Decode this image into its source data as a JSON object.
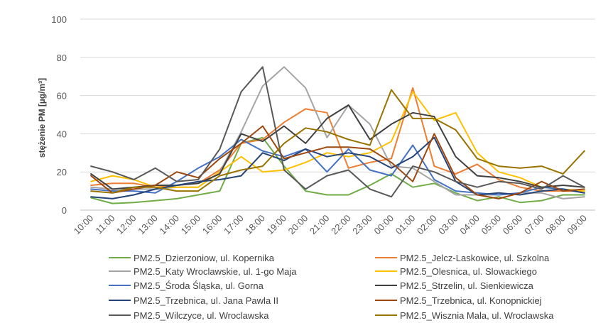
{
  "chart_data": {
    "type": "line",
    "ylabel": "stężenie PM [µg/m³]",
    "ylim": [
      0,
      100
    ],
    "yticks": [
      "0",
      "20",
      "40",
      "60",
      "80",
      "100"
    ],
    "grid": true,
    "legend_position": "bottom",
    "categories": [
      "10:00",
      "11:00",
      "12:00",
      "13:00",
      "14:00",
      "15:00",
      "16:00",
      "17:00",
      "18:00",
      "19:00",
      "20:00",
      "21:00",
      "22:00",
      "23:00",
      "00:00",
      "01:00",
      "02:00",
      "03:00",
      "04:00",
      "05:00",
      "06:00",
      "07:00",
      "08:00",
      "09:00"
    ],
    "series": [
      {
        "name": "PM2.5_Dzierzoniow, ul. Kopernika",
        "color": "#70ad47",
        "values": [
          6.5,
          3.5,
          4,
          5,
          6,
          8,
          10,
          35,
          38,
          23,
          10,
          8,
          8,
          13,
          19,
          12,
          14,
          9,
          5,
          7,
          4,
          5,
          8,
          8
        ]
      },
      {
        "name": "PM2.5_Jelcz-Laskowice, ul. Szkolna",
        "color": "#ed7d31",
        "values": [
          13,
          14,
          14,
          12,
          13,
          14,
          21,
          35,
          37,
          46,
          53,
          51,
          22,
          25,
          27,
          64,
          23,
          19,
          24,
          16,
          12,
          10,
          10,
          10
        ]
      },
      {
        "name": "PM2.5_Katy Wroclawskie, ul. 1-go Maja",
        "color": "#a5a5a5",
        "values": [
          12,
          11,
          11,
          11,
          12,
          12,
          20,
          41,
          65,
          75,
          64,
          38,
          55,
          45,
          23,
          22,
          15,
          8,
          8,
          8,
          9,
          9,
          6,
          7
        ]
      },
      {
        "name": "PM2.5_Olesnica, ul. Slowackiego",
        "color": "#ffc000",
        "values": [
          15,
          18,
          16,
          12,
          12,
          12,
          20,
          28,
          20,
          21,
          25,
          30,
          28,
          30,
          36,
          62,
          47,
          51,
          30,
          20,
          17,
          12,
          11,
          10
        ]
      },
      {
        "name": "PM2.5_Środa Śląska, ul. Gorna",
        "color": "#4472c4",
        "values": [
          11,
          10,
          10,
          9,
          15,
          22,
          28,
          37,
          31,
          28,
          32,
          20,
          32,
          21,
          18,
          34,
          16,
          10,
          9,
          8,
          9,
          12,
          11,
          9
        ]
      },
      {
        "name": "PM2.5_Strzelin, ul. Sienkiewicza",
        "color": "#404040",
        "values": [
          19,
          11,
          12,
          13,
          13,
          14,
          19,
          40,
          36,
          44,
          35,
          48,
          55,
          37,
          45,
          51,
          49,
          28,
          18,
          17,
          15,
          12,
          13,
          12
        ]
      },
      {
        "name": "PM2.5_Trzebnica, ul. Jana Pawla II",
        "color": "#264478",
        "values": [
          7,
          6,
          8,
          11,
          13,
          15,
          16,
          18,
          30,
          26,
          32,
          28,
          30,
          28,
          22,
          28,
          38,
          15,
          8,
          9,
          8,
          10,
          11,
          9
        ]
      },
      {
        "name": "PM2.5_Trzebnica, ul. Konopnickiej",
        "color": "#9e480e",
        "values": [
          18,
          9,
          11,
          13,
          20,
          17,
          27,
          35,
          44,
          27,
          30,
          33,
          33,
          32,
          25,
          15,
          40,
          17,
          8,
          6,
          9,
          15,
          10,
          11
        ]
      },
      {
        "name": "PM2.5_Wilczyce, ul. Wroclawska",
        "color": "#595959",
        "values": [
          23,
          20,
          16,
          22,
          15,
          16,
          32,
          62,
          75,
          21,
          11,
          18,
          21,
          11,
          7,
          23,
          20,
          15,
          12,
          15,
          14,
          11,
          18,
          12
        ]
      },
      {
        "name": "PM2.5_Wisznia Mala, ul. Wroclawska",
        "color": "#997300",
        "values": [
          10,
          9,
          12,
          12,
          10,
          10,
          18,
          21,
          23,
          35,
          43,
          41,
          37,
          34,
          63,
          48,
          48,
          42,
          27,
          23,
          22,
          23,
          19,
          31
        ]
      }
    ]
  }
}
